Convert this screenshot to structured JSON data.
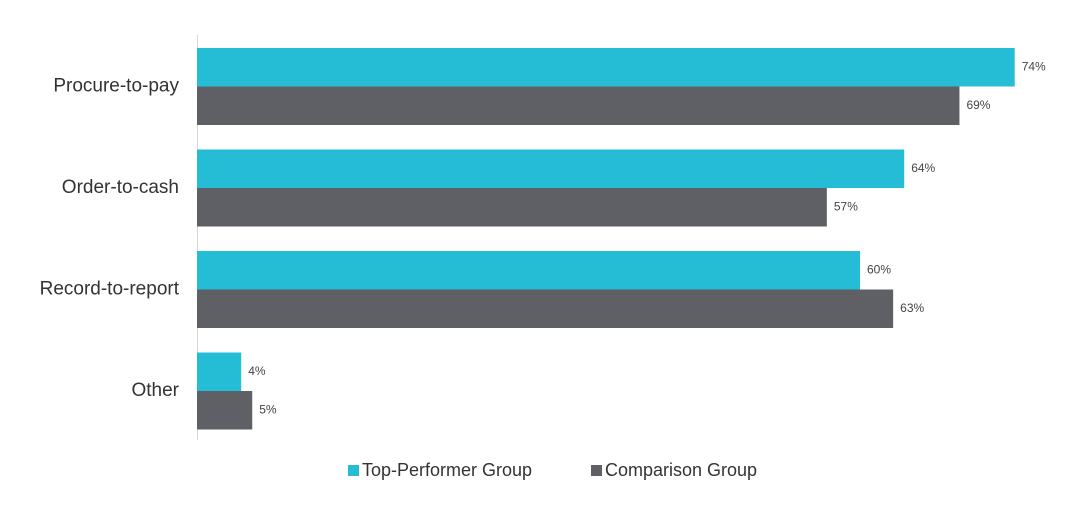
{
  "chart_data": {
    "type": "hbar",
    "categories": [
      "Procure-to-pay",
      "Order-to-cash",
      "Record-to-report",
      "Other"
    ],
    "series": [
      {
        "name": "Top-Performer Group",
        "color": "#25bcd5",
        "values": [
          74,
          64,
          60,
          4
        ],
        "value_labels": [
          "74%",
          "64%",
          "60%",
          "4%"
        ]
      },
      {
        "name": "Comparison Group",
        "color": "#5f6065",
        "values": [
          69,
          57,
          63,
          5
        ],
        "value_labels": [
          "69%",
          "57%",
          "63%",
          "5%"
        ]
      }
    ],
    "legend": "bottom"
  }
}
